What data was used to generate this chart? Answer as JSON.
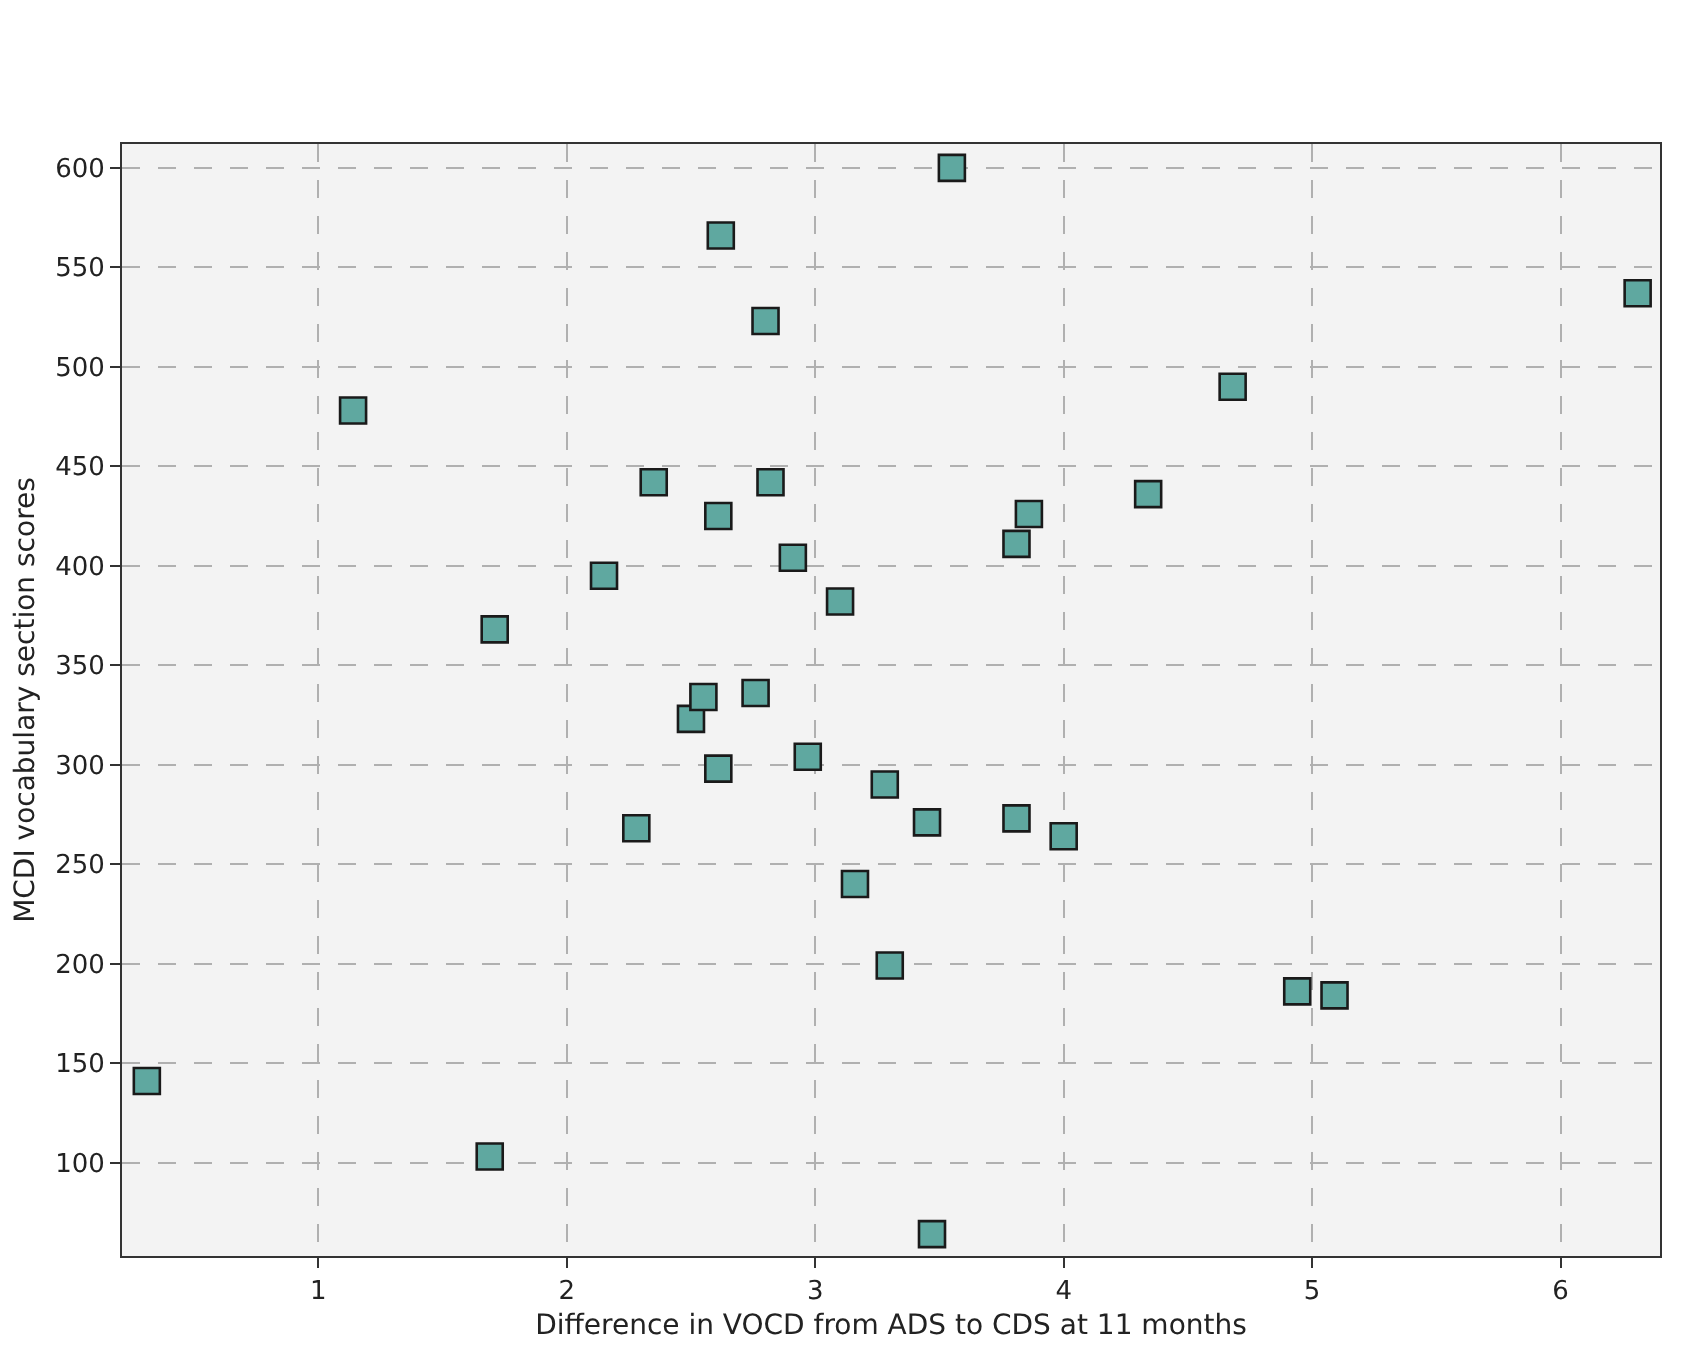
{
  "chart_data": {
    "type": "scatter",
    "xlabel": "Difference in VOCD from ADS to CDS at 11 months",
    "ylabel": "MCDI vocabulary section scores",
    "x": [
      0.31,
      1.14,
      1.71,
      1.69,
      2.15,
      2.35,
      2.28,
      2.5,
      2.55,
      2.61,
      2.61,
      2.62,
      2.76,
      2.8,
      2.82,
      2.91,
      2.97,
      3.1,
      3.16,
      3.28,
      3.3,
      3.45,
      3.47,
      3.55,
      3.81,
      3.86,
      3.81,
      4.0,
      4.34,
      4.68,
      4.94,
      5.09,
      6.31
    ],
    "series": [
      {
        "color": "#5fa8a0",
        "values": [
          141,
          478,
          368,
          103,
          395,
          442,
          268,
          323,
          334,
          425,
          298,
          566,
          336,
          523,
          442,
          404,
          304,
          382,
          240,
          290,
          199,
          271,
          64,
          600,
          411,
          426,
          273,
          264,
          436,
          490,
          186,
          184,
          537
        ]
      }
    ],
    "xlim": [
      0.21,
      6.4
    ],
    "ylim": [
      53,
      612
    ],
    "xticks": [
      1,
      2,
      3,
      4,
      5,
      6
    ],
    "yticks": [
      100,
      150,
      200,
      250,
      300,
      350,
      400,
      450,
      500,
      550,
      600
    ],
    "grid": true,
    "legend": false,
    "marker": "square"
  }
}
